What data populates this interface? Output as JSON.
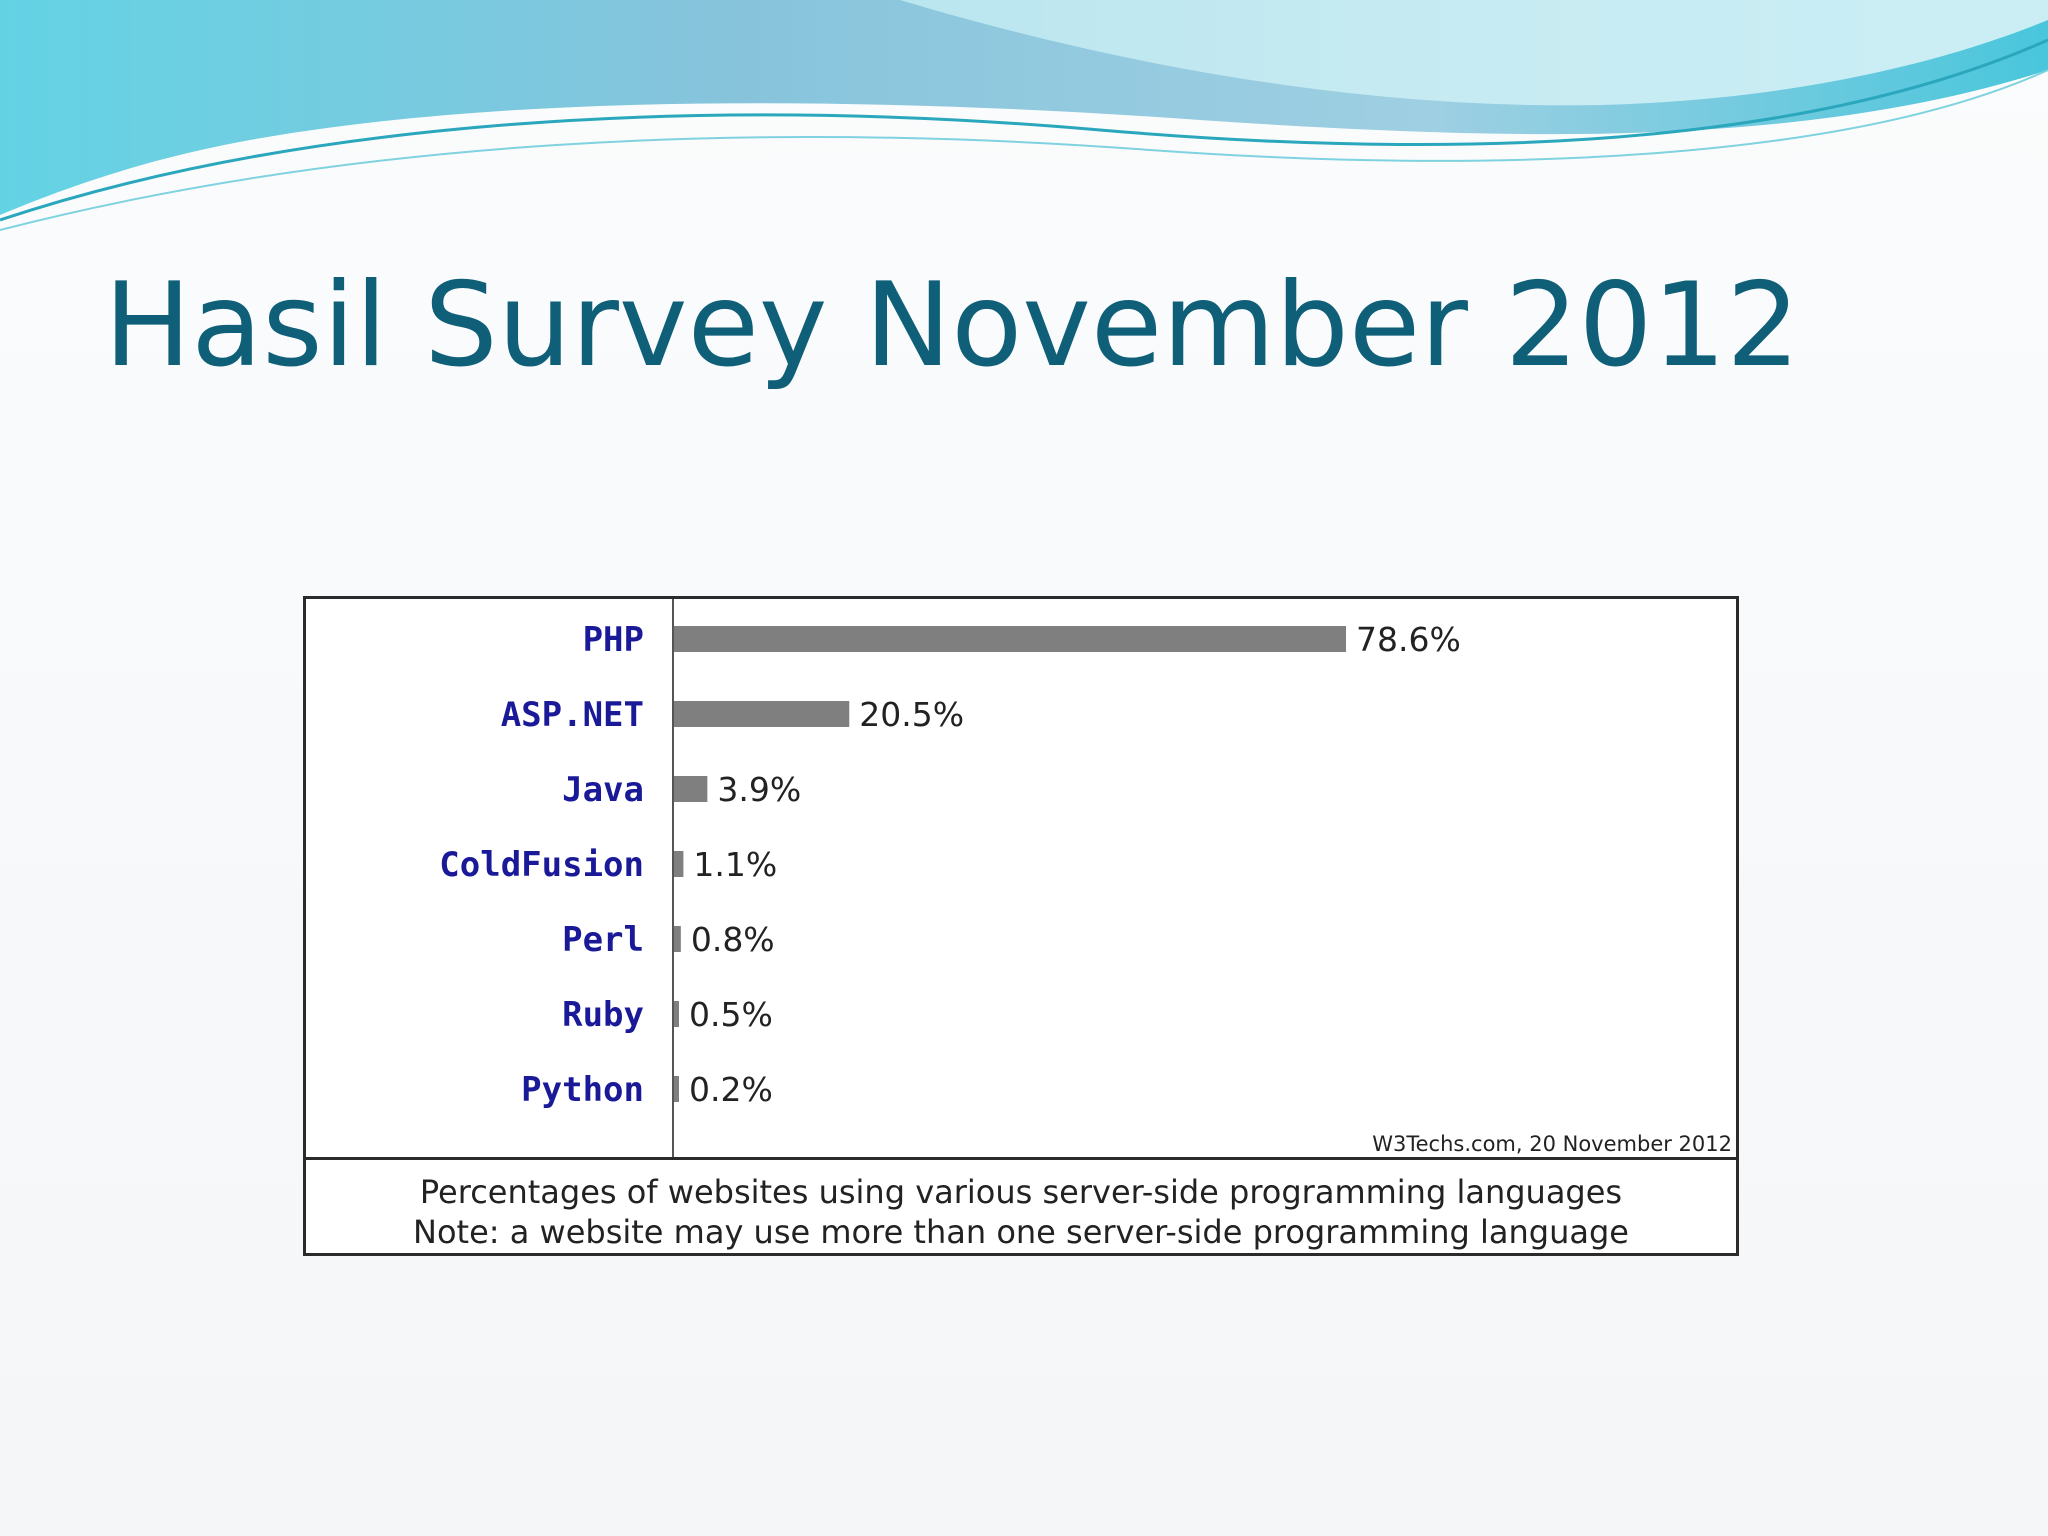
{
  "slide": {
    "title": "Hasil Survey November 2012"
  },
  "theme": {
    "title_color": "#0f5f78",
    "bar_color": "#7f7f7f",
    "label_color": "#1a1a99"
  },
  "chart_data": {
    "type": "bar",
    "orientation": "horizontal",
    "categories": [
      "PHP",
      "ASP.NET",
      "Java",
      "ColdFusion",
      "Perl",
      "Ruby",
      "Python"
    ],
    "values": [
      78.6,
      20.5,
      3.9,
      1.1,
      0.8,
      0.5,
      0.2
    ],
    "value_labels": [
      "78.6%",
      "20.5%",
      "3.9%",
      "1.1%",
      "0.8%",
      "0.5%",
      "0.2%"
    ],
    "xlim": [
      0,
      100
    ],
    "grid": false,
    "credit": "W3Techs.com, 20 November 2012",
    "caption_line1": "Percentages of websites using various server-side programming languages",
    "caption_line2": "Note: a website may use more than one server-side programming language"
  }
}
